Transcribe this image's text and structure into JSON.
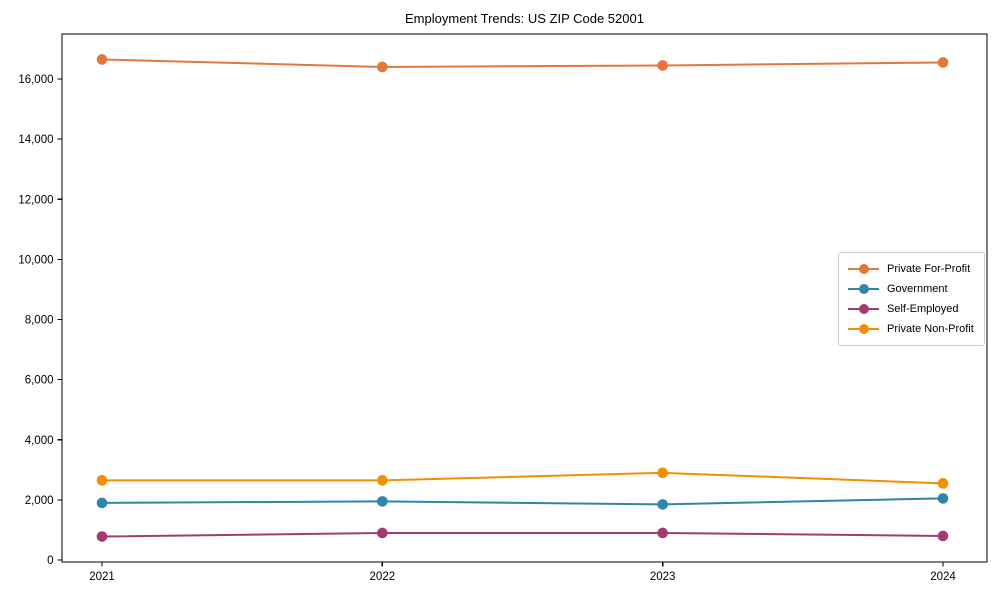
{
  "title": "Employment Trends: US ZIP Code 52001",
  "chart_data": {
    "type": "line",
    "x": [
      2021,
      2022,
      2023,
      2024
    ],
    "x_tick_labels": [
      "2021",
      "2022",
      "2023",
      "2024"
    ],
    "series": [
      {
        "name": "Private For-Profit",
        "color": "#E2773B",
        "values": [
          16650,
          16400,
          16450,
          16550
        ]
      },
      {
        "name": "Government",
        "color": "#2E86AB",
        "values": [
          1900,
          1950,
          1850,
          2050
        ]
      },
      {
        "name": "Self-Employed",
        "color": "#A23B72",
        "values": [
          780,
          900,
          900,
          800
        ]
      },
      {
        "name": "Private Non-Profit",
        "color": "#F18F01",
        "values": [
          2650,
          2650,
          2900,
          2550
        ]
      }
    ],
    "title": "Employment Trends: US ZIP Code 52001",
    "xlabel": "",
    "ylabel": "",
    "ylim": [
      0,
      17500
    ],
    "y_ticks": [
      0,
      2000,
      4000,
      6000,
      8000,
      10000,
      12000,
      14000,
      16000
    ],
    "y_tick_labels": [
      "0",
      "2,000",
      "4,000",
      "6,000",
      "8,000",
      "10,000",
      "12,000",
      "14,000",
      "16,000"
    ],
    "grid": false,
    "legend_position": "center-right",
    "marker": "circle",
    "line_width": 2,
    "frame_color": "#000000",
    "legend_border_color": "#cccccc"
  }
}
